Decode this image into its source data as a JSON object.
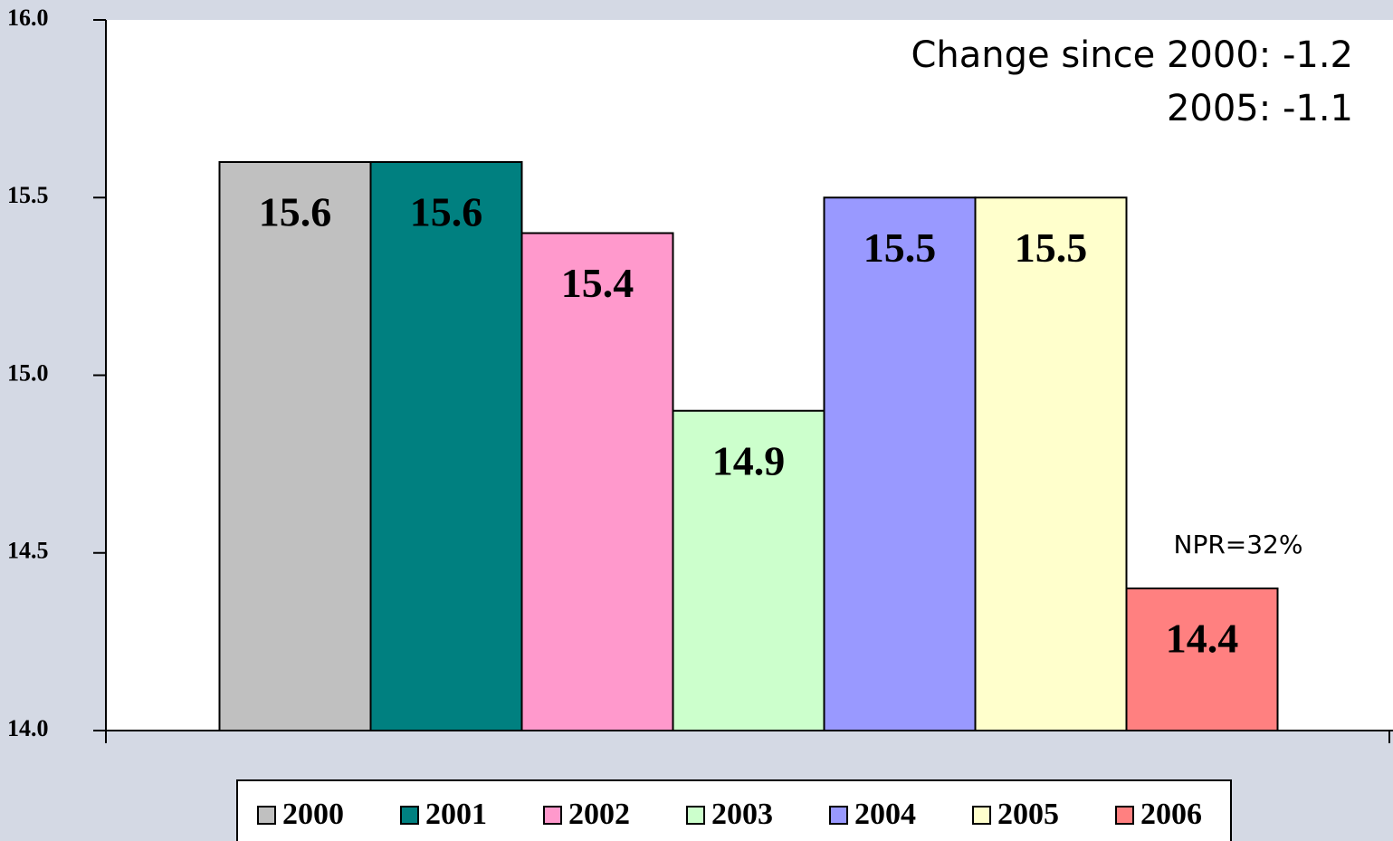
{
  "chart_data": {
    "type": "bar",
    "annotations": [
      "Change since 2000: -1.2",
      "2005: -1.1",
      "NPR=32%"
    ],
    "series": [
      {
        "name": "2000",
        "color": "#c0c0c0",
        "values": [
          15.6
        ]
      },
      {
        "name": "2001",
        "color": "#008080",
        "values": [
          15.6
        ]
      },
      {
        "name": "2002",
        "color": "#ff99cc",
        "values": [
          15.4
        ]
      },
      {
        "name": "2003",
        "color": "#ccffcc",
        "values": [
          14.9
        ]
      },
      {
        "name": "2004",
        "color": "#9999ff",
        "values": [
          15.5
        ]
      },
      {
        "name": "2005",
        "color": "#ffffcc",
        "values": [
          15.5
        ]
      },
      {
        "name": "2006",
        "color": "#ff8080",
        "values": [
          14.4
        ]
      }
    ],
    "ylim": [
      14,
      16
    ],
    "yticks": [
      {
        "value": 14,
        "label": "14.0"
      },
      14.5,
      {
        "value": 15,
        "label": "15.0"
      },
      15.5,
      {
        "value": 16,
        "label": "16.0"
      }
    ],
    "legend": "bottom"
  }
}
